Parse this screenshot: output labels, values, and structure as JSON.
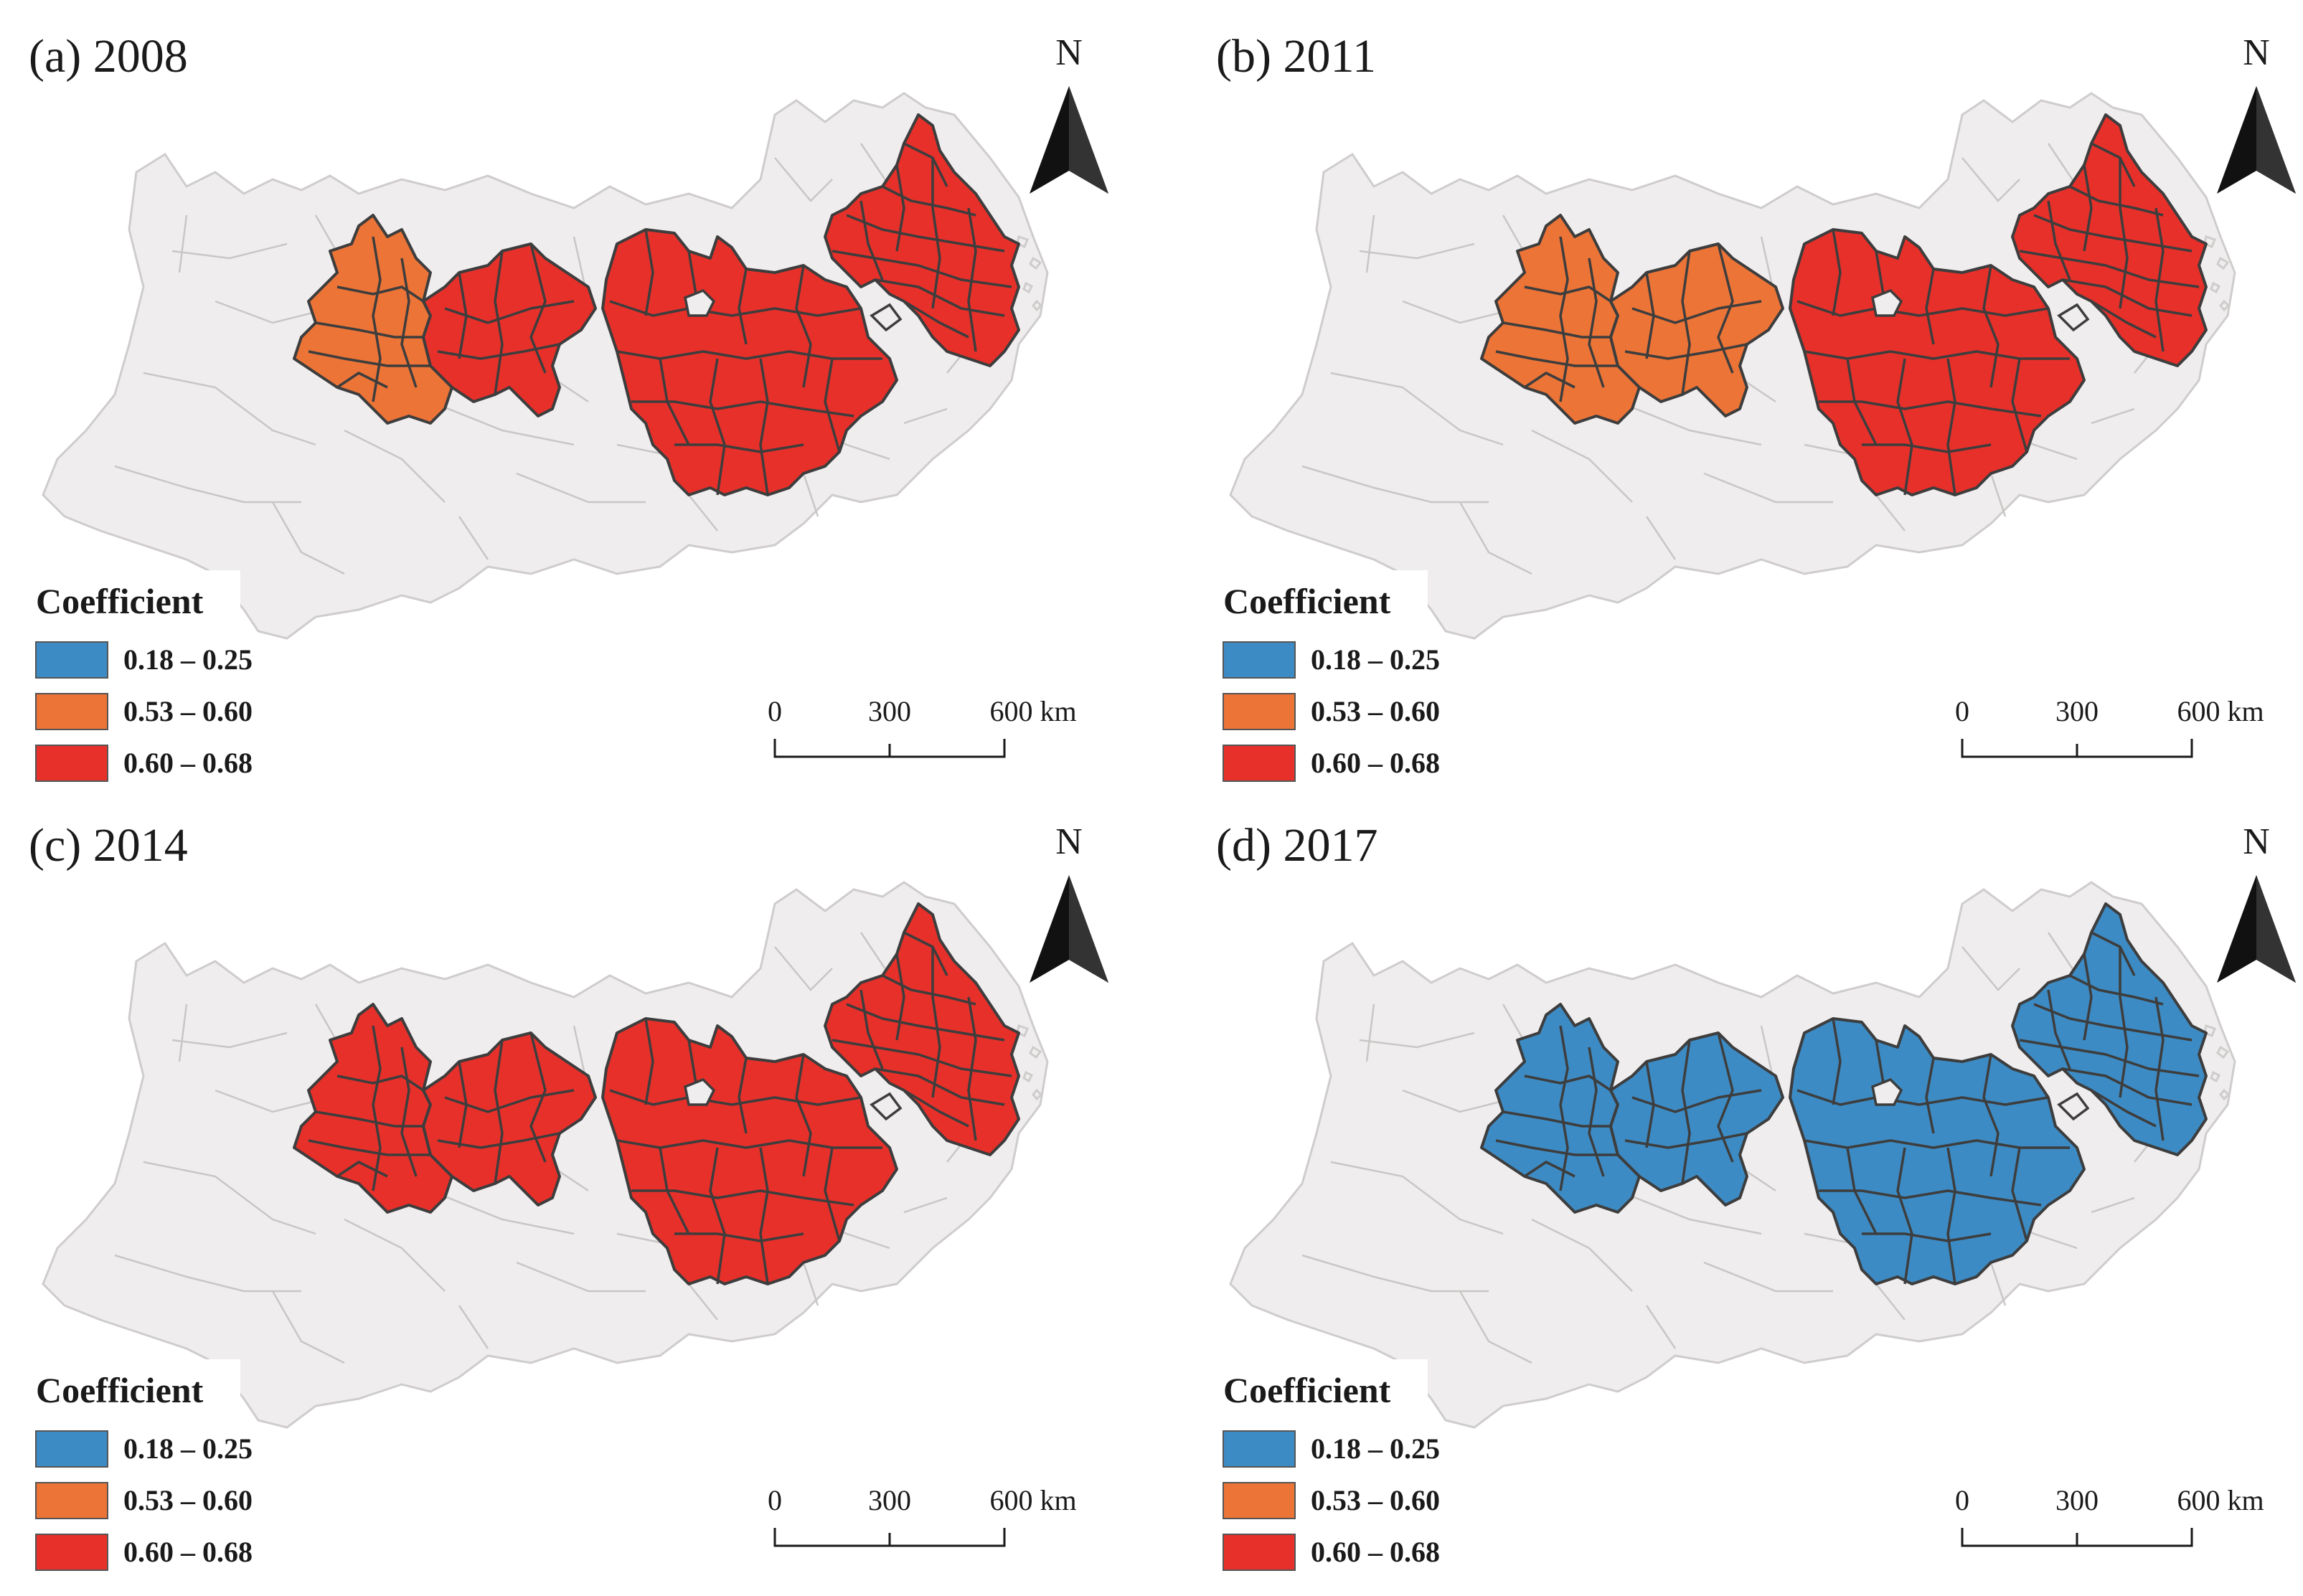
{
  "figure": {
    "panels": [
      {
        "id": "a",
        "title": "(a) 2008",
        "north_label": "N",
        "legend": {
          "title": "Coefficient",
          "items": [
            {
              "label": "0.18 – 0.25",
              "color": "#3d8bc4"
            },
            {
              "label": "0.53 – 0.60",
              "color": "#ec7437"
            },
            {
              "label": "0.60 – 0.68",
              "color": "#e8302a"
            }
          ]
        },
        "scale": {
          "ticks": [
            "0",
            "300",
            "600 km"
          ]
        },
        "region_colors": {
          "west": "#ec7437",
          "west_east_part": "#e8302a",
          "central": "#e8302a",
          "east": "#e8302a"
        }
      },
      {
        "id": "b",
        "title": "(b) 2011",
        "north_label": "N",
        "legend": {
          "title": "Coefficient",
          "items": [
            {
              "label": "0.18 – 0.25",
              "color": "#3d8bc4"
            },
            {
              "label": "0.53 – 0.60",
              "color": "#ec7437"
            },
            {
              "label": "0.60 – 0.68",
              "color": "#e8302a"
            }
          ]
        },
        "scale": {
          "ticks": [
            "0",
            "300",
            "600 km"
          ]
        },
        "region_colors": {
          "west": "#ec7437",
          "west_east_part": "#ec7437",
          "central": "#e8302a",
          "east": "#e8302a"
        }
      },
      {
        "id": "c",
        "title": "(c) 2014",
        "north_label": "N",
        "legend": {
          "title": "Coefficient",
          "items": [
            {
              "label": "0.18 – 0.25",
              "color": "#3d8bc4"
            },
            {
              "label": "0.53 – 0.60",
              "color": "#ec7437"
            },
            {
              "label": "0.60 – 0.68",
              "color": "#e8302a"
            }
          ]
        },
        "scale": {
          "ticks": [
            "0",
            "300",
            "600 km"
          ]
        },
        "region_colors": {
          "west": "#e8302a",
          "west_east_part": "#e8302a",
          "central": "#e8302a",
          "east": "#e8302a"
        }
      },
      {
        "id": "d",
        "title": "(d) 2017",
        "north_label": "N",
        "legend": {
          "title": "Coefficient",
          "items": [
            {
              "label": "0.18 – 0.25",
              "color": "#3d8bc4"
            },
            {
              "label": "0.53 – 0.60",
              "color": "#ec7437"
            },
            {
              "label": "0.60 – 0.68",
              "color": "#e8302a"
            }
          ]
        },
        "scale": {
          "ticks": [
            "0",
            "300",
            "600 km"
          ]
        },
        "region_colors": {
          "west": "#3d8bc4",
          "west_east_part": "#3d8bc4",
          "central": "#3d8bc4",
          "east": "#3d8bc4"
        }
      }
    ],
    "colors": {
      "basemap": "#efeded",
      "boundary": "#3d3d3d"
    }
  }
}
